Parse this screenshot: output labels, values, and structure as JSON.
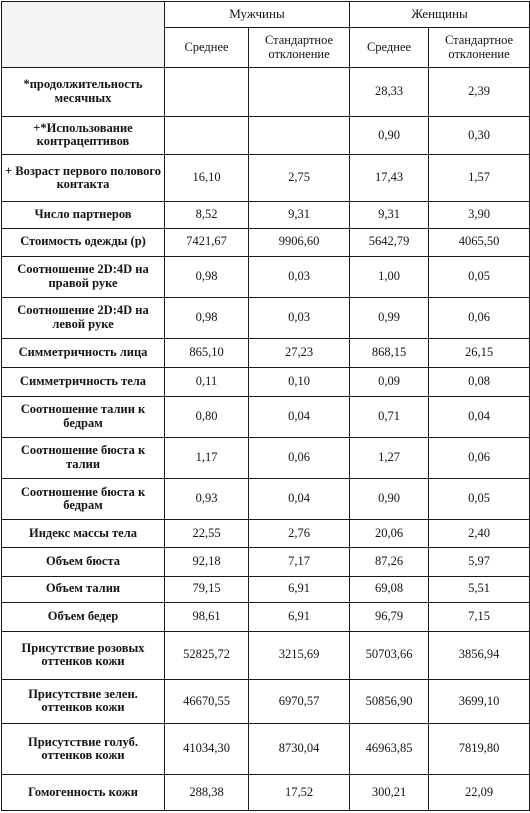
{
  "header": {
    "men": "Мужчины",
    "women": "Женщины",
    "mean": "Среднее",
    "sd": "Стандартное отклонение"
  },
  "rows": [
    {
      "label": "*продолжительность месячных",
      "m_mean": "",
      "m_sd": "",
      "f_mean": "28,33",
      "f_sd": "2,39"
    },
    {
      "label": "+*Использование контрацептивов",
      "m_mean": "",
      "m_sd": "",
      "f_mean": "0,90",
      "f_sd": "0,30"
    },
    {
      "label": "+ Возраст первого полового контакта",
      "m_mean": "16,10",
      "m_sd": "2,75",
      "f_mean": "17,43",
      "f_sd": "1,57"
    },
    {
      "label": "Число партнеров",
      "m_mean": "8,52",
      "m_sd": "9,31",
      "f_mean": "9,31",
      "f_sd": "3,90"
    },
    {
      "label": "Стоимость одежды (р)",
      "m_mean": "7421,67",
      "m_sd": "9906,60",
      "f_mean": "5642,79",
      "f_sd": "4065,50"
    },
    {
      "label": "Соотношение 2D:4D на правой руке",
      "m_mean": "0,98",
      "m_sd": "0,03",
      "f_mean": "1,00",
      "f_sd": "0,05"
    },
    {
      "label": "Соотношение 2D:4D на левой руке",
      "m_mean": "0,98",
      "m_sd": "0,03",
      "f_mean": "0,99",
      "f_sd": "0,06"
    },
    {
      "label": "Симметричность лица",
      "m_mean": "865,10",
      "m_sd": "27,23",
      "f_mean": "868,15",
      "f_sd": "26,15"
    },
    {
      "label": "Симметричность тела",
      "m_mean": "0,11",
      "m_sd": "0,10",
      "f_mean": "0,09",
      "f_sd": "0,08"
    },
    {
      "label": "Соотношение талии к бедрам",
      "m_mean": "0,80",
      "m_sd": "0,04",
      "f_mean": "0,71",
      "f_sd": "0,04"
    },
    {
      "label": "Соотношение бюста к талии",
      "m_mean": "1,17",
      "m_sd": "0,06",
      "f_mean": "1,27",
      "f_sd": "0,06"
    },
    {
      "label": "Соотношение бюста к бедрам",
      "m_mean": "0,93",
      "m_sd": "0,04",
      "f_mean": "0,90",
      "f_sd": "0,05"
    },
    {
      "label": "Индекс массы тела",
      "m_mean": "22,55",
      "m_sd": "2,76",
      "f_mean": "20,06",
      "f_sd": "2,40"
    },
    {
      "label": "Объем бюста",
      "m_mean": "92,18",
      "m_sd": "7,17",
      "f_mean": "87,26",
      "f_sd": "5,97"
    },
    {
      "label": "Объем талии",
      "m_mean": "79,15",
      "m_sd": "6,91",
      "f_mean": "69,08",
      "f_sd": "5,51"
    },
    {
      "label": "Объем бедер",
      "m_mean": "98,61",
      "m_sd": "6,91",
      "f_mean": "96,79",
      "f_sd": "7,15"
    },
    {
      "label": "Присутствие розовых оттенков кожи",
      "m_mean": "52825,72",
      "m_sd": "3215,69",
      "f_mean": "50703,66",
      "f_sd": "3856,94"
    },
    {
      "label": "Присутствие зелен. оттенков кожи",
      "m_mean": "46670,55",
      "m_sd": "6970,57",
      "f_mean": "50856,90",
      "f_sd": "3699,10"
    },
    {
      "label": "Присутствие голуб. оттенков кожи",
      "m_mean": "41034,30",
      "m_sd": "8730,04",
      "f_mean": "46963,85",
      "f_sd": "7819,80"
    },
    {
      "label": "Гомогенность кожи",
      "m_mean": "288,38",
      "m_sd": "17,52",
      "f_mean": "300,21",
      "f_sd": "22,09"
    }
  ]
}
